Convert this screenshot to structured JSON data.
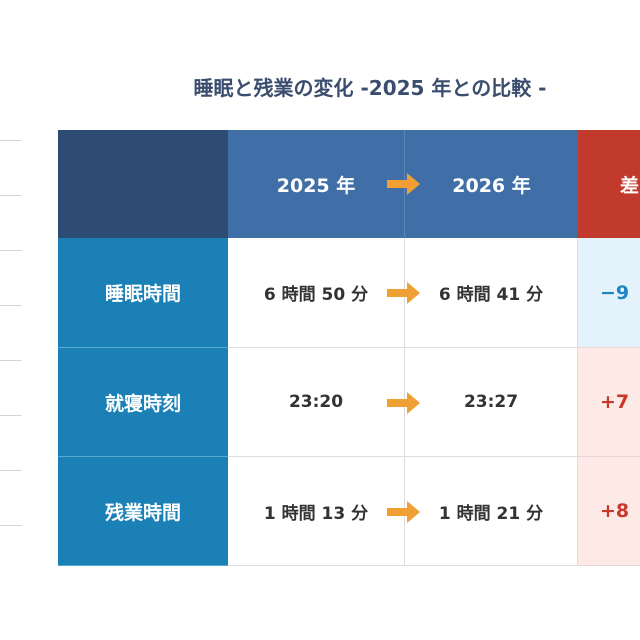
{
  "title": "睡眠と残業の変化 -2025 年との比較 -",
  "table": {
    "header": [
      "2025 年",
      "2026 年",
      "差"
    ],
    "rows": [
      [
        "睡眠時間",
        "6 時間 50 分",
        "6 時間 41 分",
        "−9"
      ],
      [
        "就寝時刻",
        "23:20",
        "23:27",
        "+7"
      ],
      [
        "残業時間",
        "1 時間 13 分",
        "1 時間 21 分",
        "+8"
      ]
    ]
  }
}
